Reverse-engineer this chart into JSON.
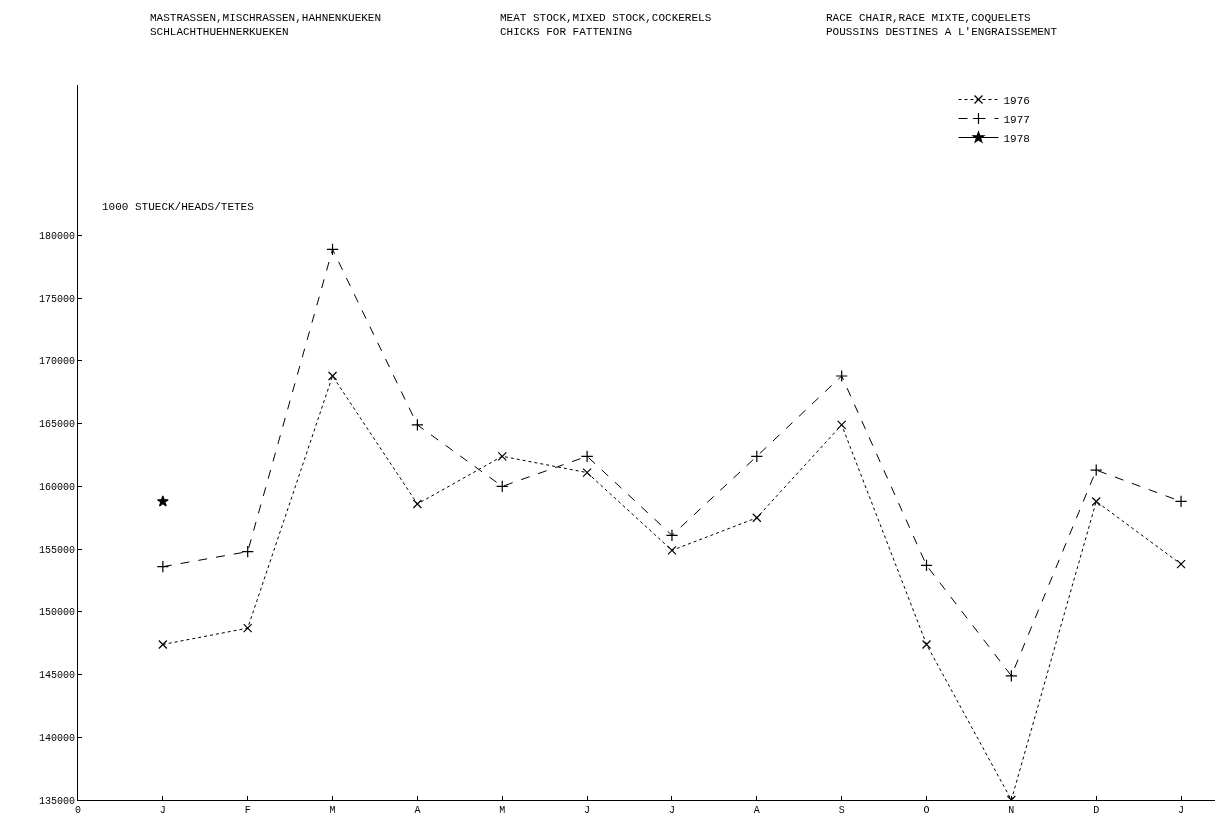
{
  "chart_data": {
    "type": "line",
    "title": "MASTRASSEN,MISCHRASSEN,HAHNENKUEKEN\nSCHLACHTHUEHNERKUEKEN",
    "subtitle": "MEAT STOCK,MIXED STOCK,COCKERELS\nCHICKS FOR FATTENING",
    "annotations": [
      "RACE CHAIR,RACE MIXTE,COQUELETS\nPOUSSINS DESTINES A L'ENGRAISSEMENT"
    ],
    "ylabel": "1000 STUECK/HEADS/TETES",
    "categories": [
      "0",
      "J",
      "F",
      "M",
      "A",
      "M",
      "J",
      "J",
      "A",
      "S",
      "O",
      "N",
      "D",
      "J"
    ],
    "series": [
      {
        "name": "1976",
        "color": "#000000",
        "line_style": "dotted",
        "marker": "x",
        "values": [
          null,
          147400,
          148700,
          168800,
          158600,
          162400,
          161100,
          154900,
          157500,
          164900,
          147400,
          135000,
          158800,
          153800
        ]
      },
      {
        "name": "1977",
        "color": "#000000",
        "line_style": "dashed",
        "marker": "cross",
        "values": [
          null,
          153600,
          154800,
          178900,
          164900,
          160000,
          162400,
          156100,
          162400,
          168800,
          153700,
          144900,
          161300,
          158800
        ]
      },
      {
        "name": "1978",
        "color": "#000000",
        "line_style": "solid",
        "marker": "star",
        "values": [
          null,
          158800,
          null,
          null,
          null,
          null,
          null,
          null,
          null,
          null,
          null,
          null,
          null,
          null
        ]
      }
    ],
    "ylim": [
      135000,
      192000
    ],
    "yticks": [
      135000,
      140000,
      145000,
      150000,
      155000,
      160000,
      165000,
      170000,
      175000,
      180000
    ],
    "grid": false,
    "legend": "top right"
  }
}
